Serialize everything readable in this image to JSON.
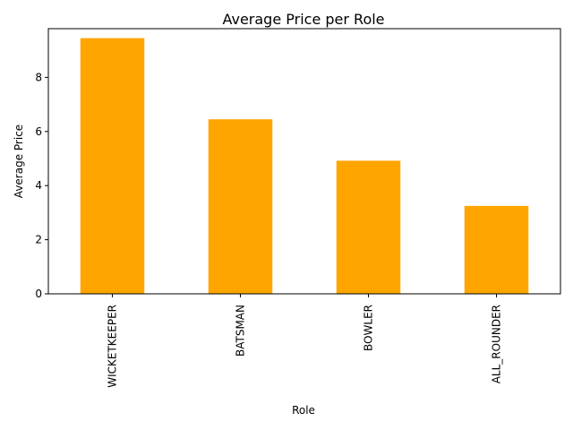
{
  "chart_data": {
    "type": "bar",
    "title": "Average Price per Role",
    "xlabel": "Role",
    "ylabel": "Average Price",
    "categories": [
      "WICKETKEEPER",
      "BATSMAN",
      "BOWLER",
      "ALL_ROUNDER"
    ],
    "values": [
      9.45,
      6.45,
      4.92,
      3.25
    ],
    "ylim": [
      0,
      9.8
    ],
    "yticks": [
      0,
      2,
      4,
      6,
      8
    ],
    "bar_color": "#ffa500",
    "grid": false,
    "legend": "none"
  }
}
